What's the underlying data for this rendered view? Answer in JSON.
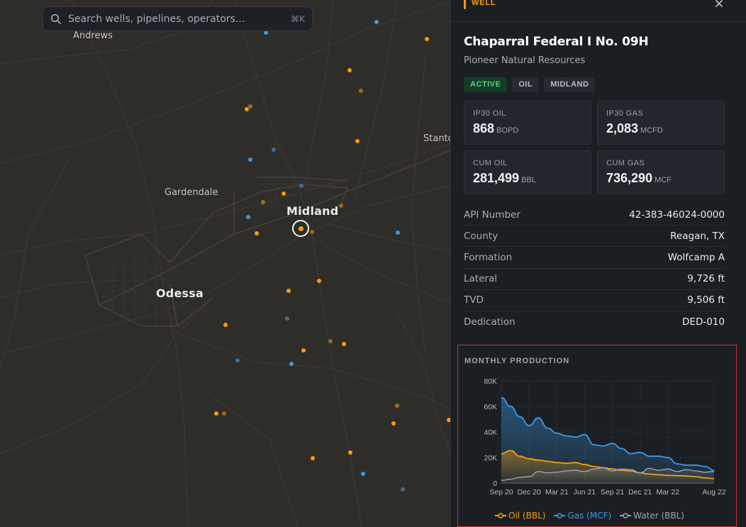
{
  "search": {
    "placeholder": "Search wells, pipelines, operators...",
    "shortcut": "⌘K",
    "icon": "search-icon"
  },
  "map": {
    "places": [
      {
        "name": "Andrews",
        "cls": "small"
      },
      {
        "name": "Stanto",
        "cls": "small"
      },
      {
        "name": "Gardendale",
        "cls": "small"
      },
      {
        "name": "Midland",
        "cls": "big"
      },
      {
        "name": "Odessa",
        "cls": "big"
      }
    ]
  },
  "panel": {
    "type_tag": "WELL",
    "close_icon": "close-icon",
    "title": "Chaparral Federal I No. 09H",
    "operator": "Pioneer Natural Resources",
    "badges": [
      {
        "label": "ACTIVE",
        "kind": "active"
      },
      {
        "label": "OIL",
        "kind": "neutral"
      },
      {
        "label": "MIDLAND",
        "kind": "neutral"
      }
    ],
    "stats": [
      {
        "label": "IP30 OIL",
        "value": "868",
        "unit": "BOPD"
      },
      {
        "label": "IP30 GAS",
        "value": "2,083",
        "unit": "MCFD"
      },
      {
        "label": "CUM OIL",
        "value": "281,499",
        "unit": "BBL"
      },
      {
        "label": "CUM GAS",
        "value": "736,290",
        "unit": "MCF"
      }
    ],
    "properties": [
      {
        "key": "API Number",
        "value": "42-383-46024-0000"
      },
      {
        "key": "County",
        "value": "Reagan, TX"
      },
      {
        "key": "Formation",
        "value": "Wolfcamp A"
      },
      {
        "key": "Lateral",
        "value": "9,726 ft"
      },
      {
        "key": "TVD",
        "value": "9,506 ft"
      },
      {
        "key": "Dedication",
        "value": "DED-010"
      }
    ],
    "chart_title": "MONTHLY PRODUCTION"
  },
  "colors": {
    "oil": "#f59e0b",
    "gas": "#3b9ae6",
    "water": "#9ca3af",
    "active": "#4ade80",
    "highlight": "#d32f2f"
  },
  "chart_data": {
    "type": "area",
    "title": "MONTHLY PRODUCTION",
    "x_ticks": [
      "Sep 20",
      "Dec 20",
      "Mar 21",
      "Jun 21",
      "Sep 21",
      "Dec 21",
      "Mar 22",
      "Aug 22"
    ],
    "y_ticks": [
      "0",
      "20K",
      "40K",
      "60K",
      "80K"
    ],
    "ylim": [
      0,
      80000
    ],
    "x": [
      "2020-09",
      "2020-10",
      "2020-11",
      "2020-12",
      "2021-01",
      "2021-02",
      "2021-03",
      "2021-04",
      "2021-05",
      "2021-06",
      "2021-07",
      "2021-08",
      "2021-09",
      "2021-10",
      "2021-11",
      "2021-12",
      "2022-01",
      "2022-02",
      "2022-03",
      "2022-04",
      "2022-05",
      "2022-06",
      "2022-07",
      "2022-08"
    ],
    "series": [
      {
        "name": "Oil (BBL)",
        "values": [
          23000,
          25500,
          21000,
          19000,
          18000,
          17000,
          16000,
          15500,
          16000,
          14500,
          13000,
          12000,
          11000,
          10000,
          9500,
          8000,
          7000,
          6500,
          6000,
          5800,
          5500,
          5000,
          4000,
          3500
        ]
      },
      {
        "name": "Gas (MCF)",
        "values": [
          67000,
          60000,
          52000,
          45000,
          51000,
          43000,
          39000,
          37000,
          36000,
          38000,
          30000,
          29000,
          31000,
          27000,
          23000,
          24000,
          21000,
          21000,
          20000,
          15000,
          14000,
          14000,
          13000,
          10000
        ]
      },
      {
        "name": "Water (BBL)",
        "values": [
          2000,
          3000,
          4500,
          5000,
          9000,
          8000,
          8500,
          9500,
          10000,
          9000,
          11000,
          12000,
          9500,
          11000,
          10500,
          8000,
          11500,
          10000,
          11000,
          9000,
          10500,
          9500,
          8500,
          9000
        ]
      }
    ],
    "legend": "bottom",
    "grid": true
  }
}
